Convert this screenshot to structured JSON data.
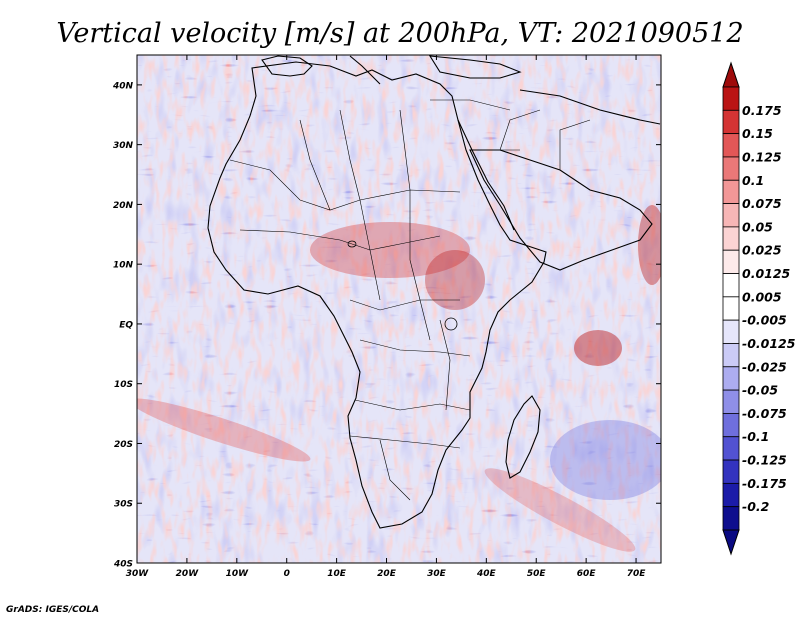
{
  "chart_data": {
    "type": "heatmap",
    "title": "Vertical velocity [m/s] at 200hPa, VT: 2021090512",
    "variable": "Vertical velocity",
    "units": "m/s",
    "level": "200hPa",
    "valid_time": "2021090512",
    "x_ticks": [
      "30W",
      "20W",
      "10W",
      "0",
      "10E",
      "20E",
      "30E",
      "40E",
      "50E",
      "60E",
      "70E"
    ],
    "x_tick_values": [
      -30,
      -20,
      -10,
      0,
      10,
      20,
      30,
      40,
      50,
      60,
      70
    ],
    "y_ticks": [
      "40S",
      "30S",
      "20S",
      "10S",
      "EQ",
      "10N",
      "20N",
      "30N",
      "40N"
    ],
    "y_tick_values": [
      -40,
      -30,
      -20,
      -10,
      0,
      10,
      20,
      30,
      40
    ],
    "xlim": [
      -30,
      75
    ],
    "ylim": [
      -40,
      45
    ],
    "colorbar": {
      "labels": [
        "0.175",
        "0.15",
        "0.125",
        "0.1",
        "0.075",
        "0.05",
        "0.025",
        "0.0125",
        "0.005",
        "-0.005",
        "-0.0125",
        "-0.025",
        "-0.05",
        "-0.075",
        "-0.1",
        "-0.125",
        "-0.175",
        "-0.2"
      ],
      "colors": [
        "#ba1414",
        "#d43434",
        "#e25757",
        "#ea7878",
        "#f29797",
        "#f7b6b6",
        "#fbd3d3",
        "#fdeaea",
        "#ffffff",
        "#ffffff",
        "#e6e6fb",
        "#cbcbf6",
        "#adadf0",
        "#8f8fe8",
        "#6f6fdd",
        "#5252d2",
        "#3333bf",
        "#1b1ba8",
        "#0e0e8e"
      ],
      "top_arrow_color": "#9e0b0b",
      "bottom_arrow_color": "#0a0a82"
    }
  },
  "credit": "GrADS: IGES/COLA",
  "colors": {
    "field_base": "#c6c6f0",
    "coastline": "#000000"
  }
}
